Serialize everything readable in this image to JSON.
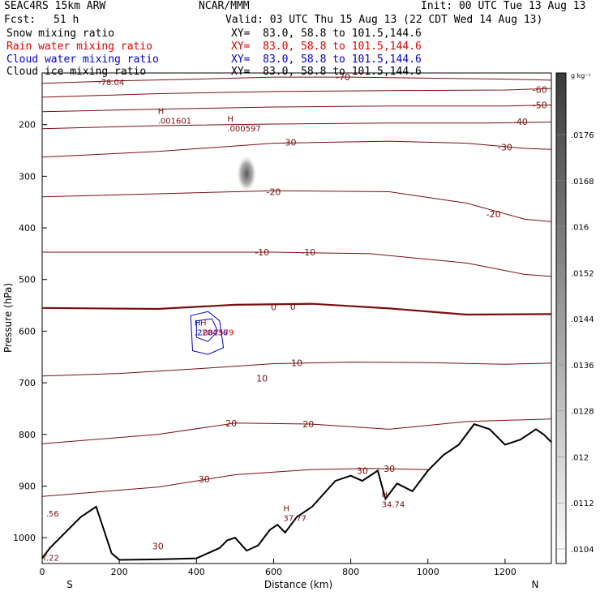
{
  "header": {
    "model": "SEAC4RS 15km ARW",
    "org": "NCAR/MMM",
    "init": "Init: 00 UTC Tue 13 Aug 13",
    "fcst_label": "Fcst:",
    "fcst_value": "51 h",
    "valid": "Valid: 03 UTC Thu 15 Aug 13 (22 CDT Wed 14 Aug 13)"
  },
  "fields": [
    {
      "label": "Snow mixing ratio",
      "xy": "XY=  83.0, 58.8 to 101.5,144.6",
      "color": "#000000"
    },
    {
      "label": "Rain water mixing ratio",
      "xy": "XY=  83.0, 58.8 to 101.5,144.6",
      "color": "#e00000"
    },
    {
      "label": "Cloud water mixing ratio",
      "xy": "XY=  83.0, 58.8 to 101.5,144.6",
      "color": "#0000cc"
    },
    {
      "label": "Cloud ice mixing ratio",
      "xy": "XY=  83.0, 58.8 to 101.5,144.6",
      "color": "#000000"
    }
  ],
  "colors": {
    "isotherm": "#7a0d0d",
    "freezing_line": "#7a0d0d",
    "terrain": "#000000",
    "cloud_water": "#0000cc",
    "rain": "#e00000"
  },
  "chart_data": {
    "type": "cross-section",
    "xlabel": "Distance (km)",
    "ylabel": "Pressure (hPa)",
    "xlim": [
      0,
      1320
    ],
    "ylim": [
      1050,
      100
    ],
    "x_ticks": [
      0,
      200,
      400,
      600,
      800,
      1000,
      1200
    ],
    "y_ticks": [
      200,
      300,
      400,
      500,
      600,
      700,
      800,
      900,
      1000
    ],
    "endpoints": {
      "left": "S",
      "right": "N"
    },
    "colorbar": {
      "unit": "g kg⁻¹",
      "labels": [
        ".0176",
        ".0168",
        ".016",
        ".0152",
        ".0144",
        ".0136",
        ".0128",
        ".012",
        ".0112",
        ".0104"
      ]
    },
    "isotherm_labels": [
      {
        "text": "-70",
        "x": 780,
        "p": 108
      },
      {
        "text": "-60",
        "x": 1290,
        "p": 132
      },
      {
        "text": "-50",
        "x": 1290,
        "p": 162
      },
      {
        "text": "-40",
        "x": 1240,
        "p": 194
      },
      {
        "text": "-30",
        "x": 640,
        "p": 234
      },
      {
        "text": "-30",
        "x": 1200,
        "p": 244
      },
      {
        "text": "-20",
        "x": 600,
        "p": 330
      },
      {
        "text": "-20",
        "x": 1170,
        "p": 373
      },
      {
        "text": "-10",
        "x": 570,
        "p": 447
      },
      {
        "text": "-10",
        "x": 690,
        "p": 447
      },
      {
        "text": "0",
        "x": 600,
        "p": 553
      },
      {
        "text": "0",
        "x": 650,
        "p": 552
      },
      {
        "text": "10",
        "x": 660,
        "p": 661
      },
      {
        "text": "10",
        "x": 570,
        "p": 691
      },
      {
        "text": "20",
        "x": 490,
        "p": 778
      },
      {
        "text": "20",
        "x": 690,
        "p": 780
      },
      {
        "text": "30",
        "x": 420,
        "p": 887
      },
      {
        "text": "30",
        "x": 830,
        "p": 870
      },
      {
        "text": "30",
        "x": 900,
        "p": 866
      },
      {
        "text": "30",
        "x": 300,
        "p": 1016
      }
    ],
    "extrema": [
      {
        "type": "H",
        "value": ".001601",
        "x": 300,
        "p": 190
      },
      {
        "type": "H",
        "value": ".000597",
        "x": 480,
        "p": 205
      },
      {
        "type": "H",
        "value": "37.77",
        "x": 625,
        "p": 960
      },
      {
        "type": "H",
        "value": "34.74",
        "x": 880,
        "p": 933
      },
      {
        "type": "H",
        "value": ".228436",
        "x": 395,
        "p": 600,
        "color": "#0000cc"
      },
      {
        "type": "H",
        "value": ".001579",
        "x": 410,
        "p": 600,
        "color": "#e00000"
      }
    ],
    "edge_labels": [
      {
        "text": "-78.04",
        "x": 145,
        "p": 117
      },
      {
        "text": ".56",
        "x": 10,
        "p": 953
      },
      {
        "text": "T.22",
        "x": 0,
        "p": 1038
      }
    ],
    "isotherms": [
      {
        "name": "-70",
        "points": [
          [
            0,
            120
          ],
          [
            200,
            115
          ],
          [
            400,
            112
          ],
          [
            600,
            108
          ],
          [
            800,
            108
          ],
          [
            1000,
            110
          ],
          [
            1200,
            112
          ],
          [
            1320,
            114
          ]
        ]
      },
      {
        "name": "-60",
        "points": [
          [
            0,
            147
          ],
          [
            300,
            140
          ],
          [
            600,
            136
          ],
          [
            900,
            134
          ],
          [
            1200,
            133
          ],
          [
            1320,
            130
          ]
        ]
      },
      {
        "name": "-50",
        "points": [
          [
            0,
            175
          ],
          [
            300,
            170
          ],
          [
            600,
            166
          ],
          [
            900,
            164
          ],
          [
            1200,
            164
          ],
          [
            1320,
            162
          ]
        ]
      },
      {
        "name": "-40",
        "points": [
          [
            0,
            208
          ],
          [
            300,
            202
          ],
          [
            600,
            199
          ],
          [
            900,
            197
          ],
          [
            1150,
            197
          ],
          [
            1320,
            195
          ]
        ]
      },
      {
        "name": "-30",
        "points": [
          [
            0,
            263
          ],
          [
            300,
            252
          ],
          [
            600,
            236
          ],
          [
            900,
            232
          ],
          [
            1100,
            236
          ],
          [
            1250,
            246
          ],
          [
            1320,
            248
          ]
        ]
      },
      {
        "name": "-20",
        "points": [
          [
            0,
            340
          ],
          [
            300,
            334
          ],
          [
            600,
            328
          ],
          [
            900,
            330
          ],
          [
            1100,
            352
          ],
          [
            1250,
            383
          ],
          [
            1320,
            388
          ]
        ]
      },
      {
        "name": "-10",
        "points": [
          [
            0,
            447
          ],
          [
            300,
            447
          ],
          [
            600,
            447
          ],
          [
            850,
            450
          ],
          [
            1100,
            468
          ],
          [
            1250,
            490
          ],
          [
            1320,
            494
          ]
        ]
      },
      {
        "name": "0",
        "points": [
          [
            0,
            555
          ],
          [
            300,
            557
          ],
          [
            500,
            549
          ],
          [
            700,
            547
          ],
          [
            900,
            556
          ],
          [
            1100,
            568
          ],
          [
            1320,
            567
          ]
        ]
      },
      {
        "name": "10",
        "points": [
          [
            0,
            687
          ],
          [
            200,
            682
          ],
          [
            400,
            673
          ],
          [
            600,
            663
          ],
          [
            800,
            660
          ],
          [
            1000,
            661
          ],
          [
            1200,
            664
          ],
          [
            1320,
            662
          ]
        ]
      },
      {
        "name": "20",
        "points": [
          [
            0,
            818
          ],
          [
            300,
            800
          ],
          [
            500,
            778
          ],
          [
            700,
            780
          ],
          [
            900,
            790
          ],
          [
            1100,
            775
          ],
          [
            1320,
            770
          ]
        ]
      },
      {
        "name": "30",
        "points": [
          [
            0,
            920
          ],
          [
            300,
            902
          ],
          [
            500,
            878
          ],
          [
            700,
            868
          ],
          [
            850,
            866
          ],
          [
            1000,
            868
          ]
        ]
      }
    ],
    "terrain": [
      [
        0,
        1040
      ],
      [
        20,
        1020
      ],
      [
        60,
        990
      ],
      [
        100,
        960
      ],
      [
        140,
        940
      ],
      [
        160,
        985
      ],
      [
        180,
        1030
      ],
      [
        200,
        1043
      ],
      [
        300,
        1042
      ],
      [
        400,
        1040
      ],
      [
        460,
        1020
      ],
      [
        480,
        1005
      ],
      [
        500,
        1000
      ],
      [
        530,
        1025
      ],
      [
        560,
        1015
      ],
      [
        590,
        985
      ],
      [
        610,
        975
      ],
      [
        630,
        990
      ],
      [
        660,
        960
      ],
      [
        700,
        940
      ],
      [
        760,
        890
      ],
      [
        800,
        880
      ],
      [
        830,
        890
      ],
      [
        870,
        870
      ],
      [
        890,
        925
      ],
      [
        920,
        895
      ],
      [
        960,
        910
      ],
      [
        1000,
        870
      ],
      [
        1040,
        840
      ],
      [
        1080,
        820
      ],
      [
        1120,
        780
      ],
      [
        1160,
        790
      ],
      [
        1200,
        820
      ],
      [
        1240,
        810
      ],
      [
        1280,
        790
      ],
      [
        1300,
        800
      ],
      [
        1320,
        815
      ]
    ]
  }
}
